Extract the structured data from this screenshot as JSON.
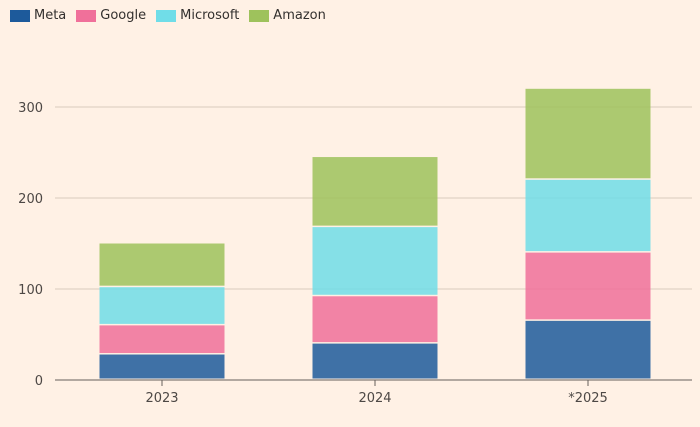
{
  "chart_data": {
    "type": "bar",
    "stacked": true,
    "categories": [
      "2023",
      "2024",
      "*2025"
    ],
    "series": [
      {
        "name": "Meta",
        "color": "#1d5a9b",
        "values": [
          28,
          40,
          65
        ]
      },
      {
        "name": "Google",
        "color": "#f0709a",
        "values": [
          32,
          52,
          75
        ]
      },
      {
        "name": "Microsoft",
        "color": "#70dde8",
        "values": [
          42,
          76,
          80
        ]
      },
      {
        "name": "Amazon",
        "color": "#9ec25c",
        "values": [
          48,
          77,
          100
        ]
      }
    ],
    "yticks": [
      0,
      100,
      200,
      300
    ],
    "ylim": [
      0,
      330
    ],
    "grid": true,
    "legend": "top-left"
  }
}
